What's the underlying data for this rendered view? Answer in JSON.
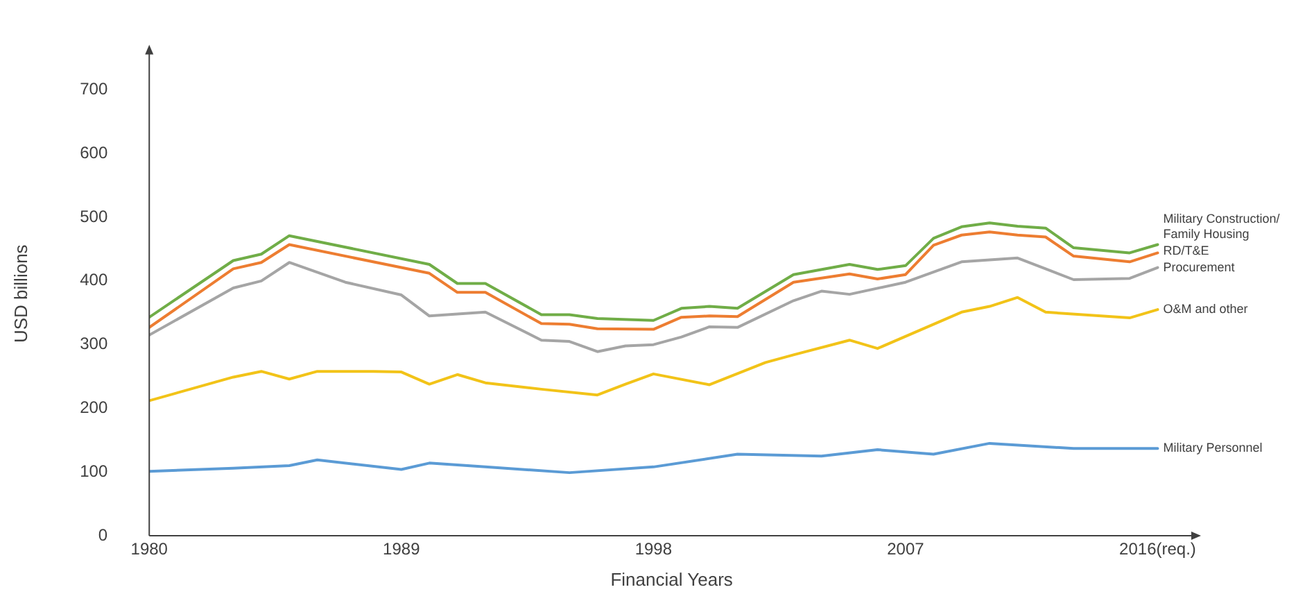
{
  "chart_data": {
    "type": "line",
    "xlabel": "Financial Years",
    "ylabel": "USD billions",
    "xlim": [
      1980,
      2017.3
    ],
    "xticks": [
      1980,
      1989,
      1998,
      2007,
      {
        "value": 2016,
        "label": "2016(req.)"
      }
    ],
    "ylim": [
      0,
      760
    ],
    "yticks": [
      0,
      100,
      200,
      300,
      400,
      500,
      600,
      700
    ],
    "legend": false,
    "series": [
      {
        "name": "Military Personnel",
        "color": "#5b9bd5",
        "x": [
          1980,
          1983,
          1985,
          1986,
          1989,
          1990,
          1992,
          1995,
          1998,
          2001,
          2004,
          2006,
          2008,
          2010,
          2013,
          2016
        ],
        "values": [
          101,
          106,
          110,
          119,
          104,
          114,
          108,
          99,
          108,
          128,
          125,
          135,
          128,
          145,
          137,
          137
        ]
      },
      {
        "name": "O&M and other",
        "color": "#f2c318",
        "x": [
          1980,
          1983,
          1984,
          1985,
          1986,
          1988,
          1989,
          1990,
          1991,
          1992,
          1994,
          1996,
          1997,
          1998,
          2000,
          2002,
          2003,
          2005,
          2006,
          2009,
          2010,
          2011,
          2012,
          2015,
          2016
        ],
        "values": [
          212,
          249,
          258,
          246,
          258,
          258,
          257,
          238,
          253,
          240,
          230,
          221,
          238,
          254,
          237,
          272,
          284,
          307,
          294,
          351,
          360,
          374,
          351,
          342,
          355
        ]
      },
      {
        "name": "Procurement",
        "color": "#a5a5a5",
        "x": [
          1980,
          1983,
          1984,
          1985,
          1987,
          1989,
          1990,
          1992,
          1994,
          1995,
          1996,
          1997,
          1998,
          1999,
          2000,
          2001,
          2003,
          2004,
          2005,
          2007,
          2009,
          2011,
          2012,
          2013,
          2015,
          2016
        ],
        "values": [
          315,
          389,
          400,
          429,
          398,
          378,
          345,
          351,
          307,
          305,
          289,
          298,
          300,
          312,
          328,
          327,
          369,
          384,
          379,
          398,
          430,
          436,
          419,
          402,
          404,
          421
        ]
      },
      {
        "name": "RD/T&E",
        "color": "#ed7d31",
        "x": [
          1980,
          1983,
          1984,
          1985,
          1990,
          1991,
          1992,
          1994,
          1995,
          1996,
          1998,
          1999,
          2000,
          2001,
          2003,
          2005,
          2006,
          2007,
          2008,
          2009,
          2010,
          2011,
          2012,
          2013,
          2015,
          2016
        ],
        "values": [
          327,
          419,
          429,
          457,
          412,
          382,
          382,
          333,
          332,
          325,
          324,
          343,
          345,
          344,
          398,
          411,
          403,
          410,
          456,
          472,
          477,
          472,
          469,
          439,
          430,
          444
        ]
      },
      {
        "name": "Military Construction/Family Housing",
        "color": "#70ad47",
        "x": [
          1980,
          1983,
          1984,
          1985,
          1990,
          1991,
          1992,
          1994,
          1995,
          1996,
          1998,
          1999,
          2000,
          2001,
          2003,
          2005,
          2006,
          2007,
          2008,
          2009,
          2010,
          2011,
          2012,
          2013,
          2015,
          2016
        ],
        "values": [
          343,
          432,
          442,
          471,
          426,
          396,
          396,
          347,
          347,
          341,
          338,
          357,
          360,
          357,
          410,
          426,
          418,
          424,
          467,
          485,
          491,
          486,
          483,
          452,
          444,
          457
        ]
      }
    ]
  }
}
